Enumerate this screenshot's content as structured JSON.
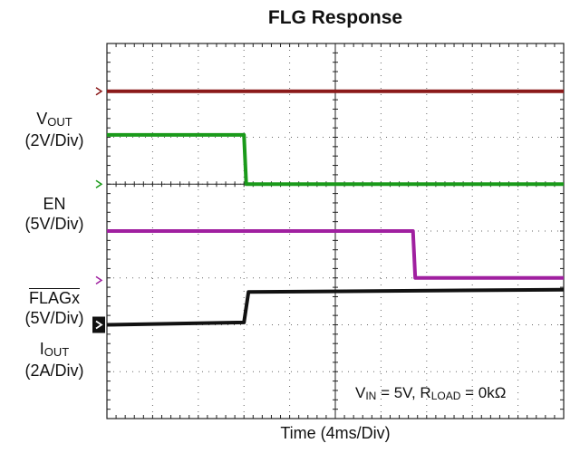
{
  "chart_data": {
    "type": "line",
    "title": "FLG Response",
    "xlabel": "Time (4ms/Div)",
    "xlim_div": [
      0,
      10
    ],
    "ylim_div": [
      0,
      8
    ],
    "grid": true,
    "series": [
      {
        "name": "V_OUT",
        "color": "#8b1a1a",
        "scale": "2V/Div",
        "points": [
          [
            0,
            6.98
          ],
          [
            10,
            6.98
          ]
        ]
      },
      {
        "name": "EN",
        "color": "#1a9a1a",
        "scale": "5V/Div",
        "points": [
          [
            0,
            6.05
          ],
          [
            3.0,
            6.05
          ],
          [
            3.05,
            5.0
          ],
          [
            10,
            5.0
          ]
        ]
      },
      {
        "name": "FLAGx",
        "color": "#a020a0",
        "scale": "5V/Div",
        "points": [
          [
            0,
            4.0
          ],
          [
            6.7,
            4.0
          ],
          [
            6.75,
            3.0
          ],
          [
            10,
            3.0
          ]
        ]
      },
      {
        "name": "I_OUT",
        "color": "#111111",
        "scale": "2A/Div",
        "points": [
          [
            0,
            2.0
          ],
          [
            3.0,
            2.05
          ],
          [
            3.1,
            2.7
          ],
          [
            10,
            2.75
          ]
        ]
      }
    ]
  },
  "labels": {
    "vout_main": "V",
    "vout_sub": "OUT",
    "vout_scale": "(2V/Div)",
    "en_main": "EN",
    "en_scale": "(5V/Div)",
    "flag_main": "FLAGx",
    "flag_scale": "(5V/Div)",
    "iout_main": "I",
    "iout_sub": "OUT",
    "iout_scale": "(2A/Div)"
  },
  "annotation": {
    "vin_main": "V",
    "vin_sub": "IN",
    "vin_rest": " = 5V, R",
    "rload_sub": "LOAD",
    "rload_rest": " = 0kΩ"
  }
}
